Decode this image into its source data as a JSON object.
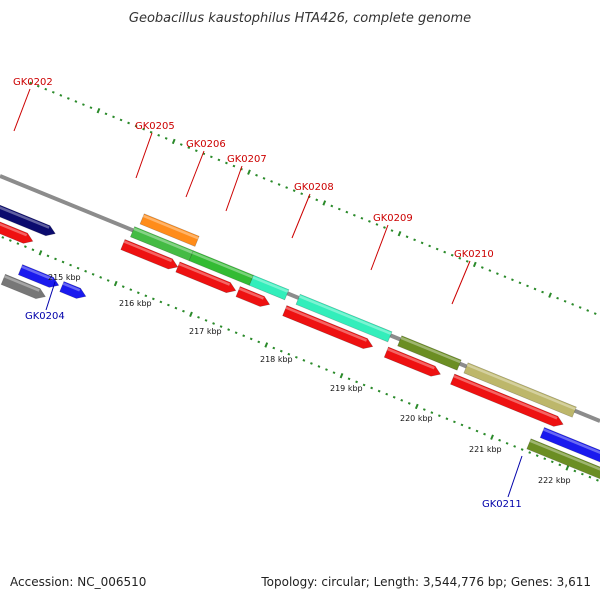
{
  "title": "Geobacillus kaustophilus HTA426, complete genome",
  "footer": {
    "accession": "Accession: NC_006510",
    "summary": "Topology: circular; Length: 3,544,776 bp; Genes: 3,611"
  },
  "colors": {
    "backbone": "#8c8c8c",
    "tick": "#2a8a2a",
    "label_top": "#cc0000",
    "label_bottom": "#0000aa"
  },
  "kbp_ticks": [
    "215 kbp",
    "216 kbp",
    "217 kbp",
    "218 kbp",
    "219 kbp",
    "220 kbp",
    "221 kbp",
    "222 kbp"
  ],
  "gene_labels": {
    "top": [
      "GK0202",
      "GK0205",
      "GK0206",
      "GK0207",
      "GK0208",
      "GK0209",
      "GK0210"
    ],
    "bottom": [
      "GK0204",
      "GK0211"
    ]
  },
  "features": [
    {
      "track": 1,
      "from": -0.4,
      "to": 0.58,
      "color": "#0b0b6e",
      "dir": 1
    },
    {
      "track": 2,
      "from": -0.4,
      "to": 0.36,
      "color": "#ee1111",
      "dir": 1
    },
    {
      "track": 4,
      "from": 0.35,
      "to": 0.86,
      "color": "#1a1aee",
      "dir": 1
    },
    {
      "track": 4,
      "from": 0.9,
      "to": 1.22,
      "color": "#1a1aee",
      "dir": 1
    },
    {
      "track": 5,
      "from": 0.2,
      "to": 0.76,
      "color": "#777777",
      "dir": 1
    },
    {
      "track": -2,
      "from": 1.5,
      "to": 2.23,
      "color": "#ff8c1a",
      "dir": 0
    },
    {
      "track": -1,
      "from": 1.45,
      "to": 2.23,
      "color": "#44bb44",
      "dir": 0
    },
    {
      "track": -1,
      "from": 2.23,
      "to": 3.03,
      "color": "#33bb33",
      "dir": 0
    },
    {
      "track": -1,
      "from": 3.03,
      "to": 3.5,
      "color": "#33eebb",
      "dir": 0
    },
    {
      "track": 0,
      "from": 1.4,
      "to": 2.13,
      "color": "#ee1111",
      "dir": 1
    },
    {
      "track": 0,
      "from": 2.13,
      "to": 2.9,
      "color": "#ee1111",
      "dir": 1
    },
    {
      "track": 0,
      "from": 2.93,
      "to": 3.35,
      "color": "#ee1111",
      "dir": 1
    },
    {
      "track": -1,
      "from": 3.65,
      "to": 4.87,
      "color": "#33eebb",
      "dir": 0
    },
    {
      "track": 0,
      "from": 3.55,
      "to": 4.72,
      "color": "#ee1111",
      "dir": 1
    },
    {
      "track": -1,
      "from": 5.0,
      "to": 5.79,
      "color": "#6b8e23",
      "dir": 0
    },
    {
      "track": 0,
      "from": 4.9,
      "to": 5.62,
      "color": "#ee1111",
      "dir": 1
    },
    {
      "track": -1,
      "from": 5.88,
      "to": 7.32,
      "color": "#bdb76b",
      "dir": 0
    },
    {
      "track": 0,
      "from": 5.78,
      "to": 7.25,
      "color": "#ee1111",
      "dir": 1
    },
    {
      "track": 1,
      "from": 7.05,
      "to": 9.4,
      "color": "#1a1aee",
      "dir": 1
    },
    {
      "track": 2,
      "from": 6.95,
      "to": 9.4,
      "color": "#6b8e23",
      "dir": 0
    }
  ]
}
